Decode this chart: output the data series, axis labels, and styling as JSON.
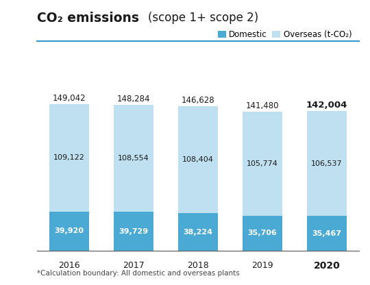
{
  "years": [
    "2016",
    "2017",
    "2018",
    "2019",
    "2020"
  ],
  "domestic": [
    39920,
    39729,
    38224,
    35706,
    35467
  ],
  "overseas": [
    109122,
    108554,
    108404,
    105774,
    106537
  ],
  "totals": [
    149042,
    148284,
    146628,
    141480,
    142004
  ],
  "domestic_color": "#4BAAD3",
  "overseas_color": "#BFE0F0",
  "title_bold": "CO₂ emissions",
  "title_light": "(scope 1+ scope 2)",
  "legend_domestic": "Domestic",
  "legend_overseas": "Overseas (t-CO₂)",
  "footnote": "*Calculation boundary: All domestic and overseas plants",
  "bar_width": 0.62,
  "ylim": [
    0,
    168000
  ],
  "background_color": "#ffffff",
  "title_color": "#1a1a1a",
  "text_color_dark": "#1a1a1a",
  "text_color_white": "#ffffff",
  "separator_color": "#3399CC"
}
